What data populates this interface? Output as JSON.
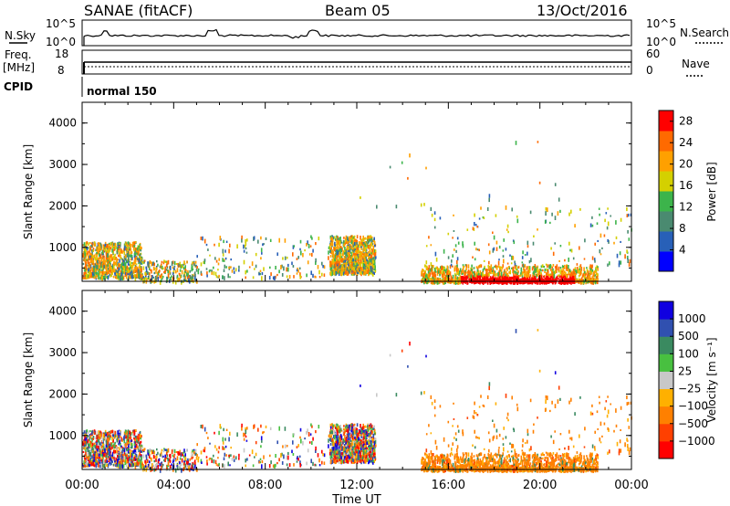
{
  "header": {
    "radar": "SANAE (fitACF)",
    "beam": "Beam 05",
    "date": "13/Oct/2016"
  },
  "noise_panel": {
    "left_label": "N.Sky",
    "right_label": "N.Search",
    "left_ticks": [
      "10^5",
      "10^0"
    ],
    "right_ticks": [
      "10^5",
      "10^0"
    ]
  },
  "freq_panel": {
    "left_label": "Freq.",
    "left_unit": "[MHz]",
    "left_ticks": [
      "18",
      "8"
    ],
    "right_label": "Nave",
    "right_ticks": [
      "60",
      "0"
    ]
  },
  "cpid": {
    "label": "CPID",
    "mode": "normal 150"
  },
  "colors": {
    "power_scale": [
      "#0000ff",
      "#2860b8",
      "#4a8a70",
      "#3cb44b",
      "#d4d000",
      "#ffa000",
      "#ff6a00",
      "#ff0000"
    ],
    "velocity_scale": [
      "#ff0000",
      "#ff4000",
      "#ff8000",
      "#ffb000",
      "#c8c8c8",
      "#48c040",
      "#3a8a60",
      "#3050b0",
      "#1000e0"
    ]
  },
  "chart_data": [
    {
      "type": "heatmap",
      "name": "power",
      "ylabel": "Slant Range [km]",
      "ylim": [
        180,
        4500
      ],
      "y_ticks": [
        "1000",
        "2000",
        "3000",
        "4000"
      ],
      "x_ticks": [
        "00:00",
        "04:00",
        "08:00",
        "12:00",
        "16:00",
        "20:00",
        "00:00"
      ],
      "xlim_hours": [
        0,
        24
      ],
      "colorbar_label": "Power [dB]",
      "colorbar_ticks": [
        "4",
        "8",
        "12",
        "16",
        "20",
        "24",
        "28"
      ],
      "colorbar_range": [
        0,
        30
      ],
      "scatter_regions": [
        {
          "t": [
            0.0,
            2.6
          ],
          "r": [
            300,
            1150
          ],
          "level": "high"
        },
        {
          "t": [
            2.6,
            5.0
          ],
          "r": [
            200,
            700
          ],
          "level": "mixed"
        },
        {
          "t": [
            5.0,
            10.8
          ],
          "r": [
            300,
            1300
          ],
          "level": "sparse"
        },
        {
          "t": [
            10.8,
            12.8
          ],
          "r": [
            400,
            1300
          ],
          "level": "high"
        },
        {
          "t": [
            14.8,
            22.5
          ],
          "r": [
            200,
            600
          ],
          "level": "strong"
        },
        {
          "t": [
            15.0,
            24.0
          ],
          "r": [
            600,
            2000
          ],
          "level": "sparse"
        },
        {
          "t": [
            11.5,
            22.0
          ],
          "r": [
            2000,
            3800
          ],
          "level": "isolated"
        }
      ]
    },
    {
      "type": "heatmap",
      "name": "velocity",
      "ylabel": "Slant Range [km]",
      "ylim": [
        180,
        4500
      ],
      "y_ticks": [
        "1000",
        "2000",
        "3000",
        "4000"
      ],
      "x_ticks": [
        "00:00",
        "04:00",
        "08:00",
        "12:00",
        "16:00",
        "20:00",
        "00:00"
      ],
      "xlabel": "Time UT",
      "xlim_hours": [
        0,
        24
      ],
      "colorbar_label": "Velocity [m s⁻¹]",
      "colorbar_ticks": [
        "1000",
        "500",
        "100",
        "25",
        "−25",
        "−100",
        "−500",
        "−1000"
      ],
      "colorbar_range": [
        -1200,
        1200
      ]
    }
  ]
}
